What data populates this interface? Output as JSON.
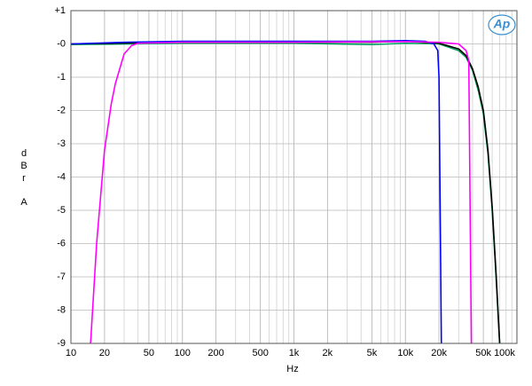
{
  "chart_data": {
    "type": "line",
    "xlabel": "Hz",
    "ylabel": [
      "d",
      "B",
      "r",
      "A"
    ],
    "logo": "Ap",
    "xscale": "log",
    "xlim": [
      10,
      100000
    ],
    "xticks": [
      10,
      20,
      50,
      100,
      200,
      500,
      {
        "value": 1000,
        "label": "1k"
      },
      {
        "value": 2000,
        "label": "2k"
      },
      {
        "value": 5000,
        "label": "5k"
      },
      {
        "value": 10000,
        "label": "10k"
      },
      {
        "value": 20000,
        "label": "20k"
      },
      {
        "value": 50000,
        "label": "50k"
      },
      {
        "value": 100000,
        "label": "100k"
      }
    ],
    "ylim": [
      -9,
      1
    ],
    "yticks": [
      -9,
      -8,
      -7,
      -6,
      -5,
      -4,
      -3,
      -2,
      -1,
      {
        "value": 0,
        "label": "-0"
      },
      {
        "value": 1,
        "label": "+1"
      }
    ],
    "grid": true,
    "series": [
      {
        "color": "#00a060",
        "x": [
          10,
          100,
          1000,
          5000,
          10000,
          20000,
          30000,
          35000,
          40000,
          45000,
          50000,
          55000,
          60000,
          65000,
          70000
        ],
        "values": [
          -0.02,
          0.02,
          0.02,
          -0.02,
          0.02,
          0.0,
          -0.2,
          -0.4,
          -0.8,
          -1.4,
          -2.1,
          -3.3,
          -5,
          -7,
          -9
        ]
      },
      {
        "color": "#000000",
        "x": [
          10,
          100,
          1000,
          5000,
          10000,
          20000,
          30000,
          35000,
          40000,
          45000,
          50000,
          55000,
          60000,
          65000,
          70000
        ],
        "values": [
          0.0,
          0.05,
          0.05,
          0.05,
          0.08,
          0.02,
          -0.15,
          -0.35,
          -0.75,
          -1.3,
          -2.0,
          -3.2,
          -4.9,
          -6.9,
          -9
        ]
      },
      {
        "color": "#0000ff",
        "x": [
          10,
          30,
          100,
          1000,
          5000,
          10000,
          15000,
          18000,
          19500,
          20000,
          21000
        ],
        "values": [
          0.0,
          0.05,
          0.08,
          0.08,
          0.08,
          0.1,
          0.08,
          0.0,
          -0.2,
          -1.0,
          -9
        ]
      },
      {
        "color": "#ff00ff",
        "x": [
          15,
          17,
          20,
          23,
          25,
          30,
          35,
          40,
          100,
          1000,
          10000,
          20000,
          30000,
          35000,
          37000,
          39000
        ],
        "values": [
          -9,
          -6,
          -3.2,
          -1.8,
          -1.2,
          -0.3,
          -0.05,
          0.02,
          0.05,
          0.05,
          0.07,
          0.05,
          0.0,
          -0.2,
          -0.5,
          -9
        ]
      }
    ]
  }
}
